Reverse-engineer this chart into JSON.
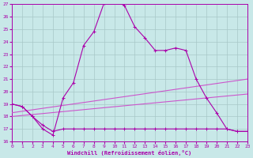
{
  "xlabel": "Windchill (Refroidissement éolien,°C)",
  "xlim": [
    0,
    23
  ],
  "ylim": [
    16,
    27
  ],
  "yticks": [
    16,
    17,
    18,
    19,
    20,
    21,
    22,
    23,
    24,
    25,
    26,
    27
  ],
  "xticks": [
    0,
    1,
    2,
    3,
    4,
    5,
    6,
    7,
    8,
    9,
    10,
    11,
    12,
    13,
    14,
    15,
    16,
    17,
    18,
    19,
    20,
    21,
    22,
    23
  ],
  "background_color": "#c8e8e8",
  "grid_color": "#a8c8c8",
  "line_color1": "#aa00aa",
  "line_color2": "#cc55cc",
  "series1_x": [
    0,
    1,
    2,
    3,
    4,
    5,
    6,
    7,
    8,
    9,
    10,
    11,
    12,
    13,
    14,
    15,
    16,
    17,
    18,
    19,
    20,
    21,
    22,
    23
  ],
  "series1_y": [
    19.0,
    18.8,
    18.0,
    17.0,
    16.5,
    19.5,
    20.7,
    23.7,
    24.8,
    27.1,
    27.3,
    26.9,
    25.2,
    24.3,
    23.3,
    23.3,
    23.5,
    23.3,
    21.0,
    19.5,
    18.3,
    17.0,
    16.8,
    16.8
  ],
  "series2_x": [
    0,
    1,
    2,
    3,
    4,
    5,
    6,
    7,
    8,
    9,
    10,
    11,
    12,
    13,
    14,
    15,
    16,
    17,
    18,
    19,
    20,
    21,
    22,
    23
  ],
  "series2_y": [
    19.0,
    18.8,
    18.0,
    17.3,
    16.8,
    17.0,
    17.0,
    17.0,
    17.0,
    17.0,
    17.0,
    17.0,
    17.0,
    17.0,
    17.0,
    17.0,
    17.0,
    17.0,
    17.0,
    17.0,
    17.0,
    17.0,
    16.8,
    16.8
  ],
  "series3_x": [
    0,
    23
  ],
  "series3_y": [
    18.3,
    21.0
  ],
  "series4_x": [
    0,
    23
  ],
  "series4_y": [
    18.0,
    19.8
  ]
}
